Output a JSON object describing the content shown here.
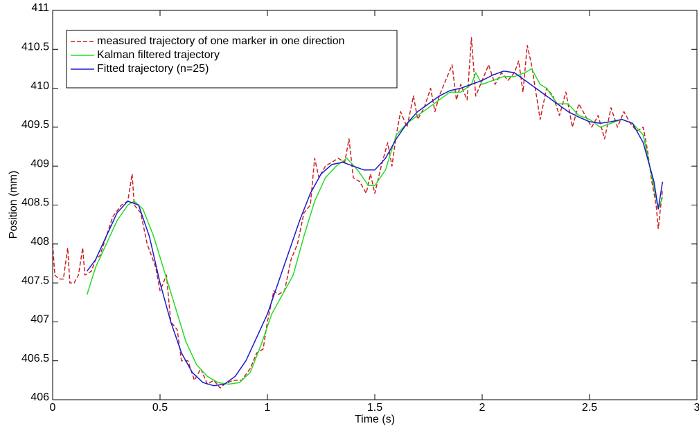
{
  "chart_data": {
    "type": "line",
    "xlabel": "Time (s)",
    "ylabel": "Position (mm)",
    "xlim": [
      0,
      3
    ],
    "xticks": [
      0,
      0.5,
      1,
      1.5,
      2,
      2.5,
      3
    ],
    "ylim": [
      406,
      411
    ],
    "yticks": [
      406,
      406.5,
      407,
      407.5,
      408,
      408.5,
      409,
      409.5,
      410,
      410.5,
      411
    ],
    "grid": false,
    "legend": "upper left",
    "series": [
      {
        "name": "measured trajectory of one marker in one direction",
        "color": "#cc1f1f",
        "dashed": true,
        "x": [
          0,
          0.01,
          0.03,
          0.05,
          0.07,
          0.08,
          0.1,
          0.12,
          0.14,
          0.15,
          0.18,
          0.2,
          0.22,
          0.25,
          0.28,
          0.32,
          0.35,
          0.37,
          0.38,
          0.41,
          0.44,
          0.48,
          0.5,
          0.53,
          0.55,
          0.58,
          0.6,
          0.63,
          0.66,
          0.69,
          0.72,
          0.75,
          0.78,
          0.8,
          0.84,
          0.88,
          0.92,
          0.95,
          0.98,
          1.0,
          1.03,
          1.05,
          1.08,
          1.11,
          1.14,
          1.17,
          1.2,
          1.22,
          1.24,
          1.27,
          1.3,
          1.33,
          1.36,
          1.38,
          1.4,
          1.43,
          1.46,
          1.48,
          1.5,
          1.53,
          1.56,
          1.58,
          1.6,
          1.62,
          1.65,
          1.68,
          1.7,
          1.73,
          1.76,
          1.78,
          1.8,
          1.83,
          1.86,
          1.88,
          1.9,
          1.93,
          1.95,
          1.97,
          2.0,
          2.03,
          2.06,
          2.09,
          2.12,
          2.15,
          2.17,
          2.19,
          2.21,
          2.23,
          2.25,
          2.27,
          2.3,
          2.33,
          2.36,
          2.39,
          2.42,
          2.45,
          2.48,
          2.51,
          2.54,
          2.57,
          2.6,
          2.63,
          2.66,
          2.69,
          2.72,
          2.75,
          2.77,
          2.79,
          2.81,
          2.82,
          2.84
        ],
        "values": [
          408.0,
          407.6,
          407.55,
          407.55,
          407.95,
          407.5,
          407.5,
          407.6,
          407.95,
          407.6,
          407.65,
          407.8,
          407.85,
          408.1,
          408.35,
          408.5,
          408.55,
          408.9,
          408.5,
          408.4,
          408.0,
          407.7,
          407.4,
          407.6,
          407.0,
          406.9,
          406.5,
          406.5,
          406.25,
          406.4,
          406.2,
          406.25,
          406.15,
          406.2,
          406.25,
          406.25,
          406.4,
          406.6,
          406.65,
          407.0,
          407.4,
          407.35,
          407.4,
          407.8,
          408.0,
          408.4,
          408.5,
          409.1,
          408.85,
          409.0,
          409.05,
          409.1,
          409.05,
          409.35,
          408.85,
          408.8,
          408.65,
          408.9,
          408.65,
          409.0,
          409.3,
          409.0,
          409.4,
          409.7,
          409.5,
          409.9,
          409.6,
          409.75,
          410.0,
          409.7,
          409.9,
          410.1,
          410.3,
          409.85,
          410.05,
          409.85,
          410.65,
          409.9,
          410.1,
          410.3,
          410.05,
          410.2,
          410.1,
          410.2,
          410.35,
          409.95,
          410.55,
          410.3,
          409.95,
          409.6,
          410.0,
          409.9,
          409.65,
          409.95,
          409.5,
          409.8,
          409.65,
          409.5,
          409.65,
          409.35,
          409.75,
          409.5,
          409.7,
          409.55,
          409.45,
          409.5,
          409.2,
          408.8,
          408.5,
          408.2,
          408.7
        ]
      },
      {
        "name": "Kalman filtered trajectory",
        "color": "#22dd22",
        "dashed": false,
        "x": [
          0.16,
          0.2,
          0.25,
          0.3,
          0.35,
          0.38,
          0.42,
          0.47,
          0.52,
          0.57,
          0.62,
          0.67,
          0.72,
          0.77,
          0.82,
          0.87,
          0.92,
          0.97,
          1.02,
          1.07,
          1.12,
          1.17,
          1.22,
          1.27,
          1.32,
          1.37,
          1.42,
          1.47,
          1.5,
          1.55,
          1.6,
          1.65,
          1.7,
          1.75,
          1.8,
          1.85,
          1.9,
          1.95,
          1.97,
          2.0,
          2.05,
          2.1,
          2.15,
          2.2,
          2.23,
          2.27,
          2.3,
          2.35,
          2.4,
          2.45,
          2.5,
          2.55,
          2.6,
          2.65,
          2.7,
          2.75,
          2.78,
          2.82,
          2.84
        ],
        "values": [
          407.35,
          407.7,
          408.0,
          408.3,
          408.5,
          408.55,
          408.45,
          408.1,
          407.65,
          407.2,
          406.75,
          406.45,
          406.3,
          406.22,
          406.2,
          406.22,
          406.35,
          406.7,
          407.1,
          407.35,
          407.6,
          408.1,
          408.55,
          408.85,
          409.0,
          409.1,
          408.95,
          408.75,
          408.75,
          408.95,
          409.4,
          409.55,
          409.65,
          409.75,
          409.85,
          409.95,
          409.95,
          410.05,
          410.2,
          410.05,
          410.1,
          410.15,
          410.15,
          410.2,
          410.25,
          410.05,
          410.0,
          409.8,
          409.8,
          409.65,
          409.6,
          409.5,
          409.55,
          409.6,
          409.55,
          409.4,
          409.0,
          408.45,
          408.6
        ]
      },
      {
        "name": "Fitted trajectory (n=25)",
        "color": "#1a1acc",
        "dashed": false,
        "x": [
          0.16,
          0.2,
          0.25,
          0.3,
          0.35,
          0.4,
          0.45,
          0.5,
          0.55,
          0.6,
          0.65,
          0.7,
          0.75,
          0.8,
          0.85,
          0.9,
          0.95,
          1.0,
          1.05,
          1.1,
          1.15,
          1.2,
          1.25,
          1.3,
          1.35,
          1.4,
          1.45,
          1.5,
          1.55,
          1.6,
          1.65,
          1.7,
          1.75,
          1.8,
          1.85,
          1.9,
          1.95,
          2.0,
          2.05,
          2.1,
          2.15,
          2.2,
          2.25,
          2.3,
          2.35,
          2.4,
          2.45,
          2.5,
          2.55,
          2.6,
          2.65,
          2.7,
          2.75,
          2.8,
          2.82,
          2.84
        ],
        "values": [
          407.65,
          407.8,
          408.1,
          408.4,
          408.55,
          408.5,
          408.1,
          407.5,
          407.0,
          406.6,
          406.35,
          406.22,
          406.18,
          406.2,
          406.3,
          406.5,
          406.8,
          407.1,
          407.5,
          407.9,
          408.3,
          408.65,
          408.9,
          409.02,
          409.05,
          409.0,
          408.95,
          408.95,
          409.1,
          409.35,
          409.55,
          409.7,
          409.8,
          409.9,
          409.97,
          410.0,
          410.05,
          410.1,
          410.17,
          410.22,
          410.2,
          410.1,
          410.0,
          409.9,
          409.8,
          409.7,
          409.63,
          409.57,
          409.55,
          409.57,
          409.6,
          409.55,
          409.3,
          408.8,
          408.45,
          408.8
        ]
      }
    ]
  }
}
